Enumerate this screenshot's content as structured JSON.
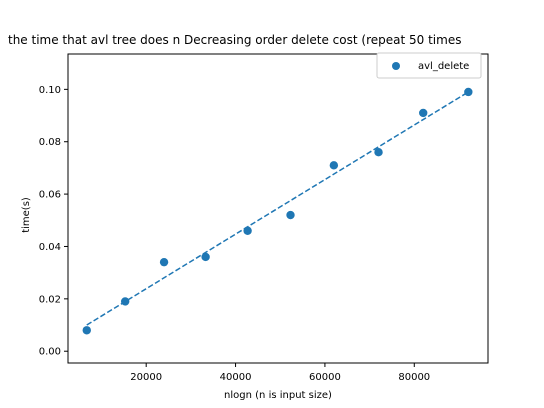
{
  "chart_data": {
    "type": "scatter",
    "title": "the time that avl tree does n Decreasing order delete cost (repeat 50 times",
    "xlabel": "nlogn (n is input size)",
    "ylabel": "time(s)",
    "xlim": [
      2500,
      96500
    ],
    "ylim": [
      -0.0045,
      0.1135
    ],
    "xticks": [
      20000,
      40000,
      60000,
      80000
    ],
    "xtick_labels": [
      "20000",
      "40000",
      "60000",
      "80000"
    ],
    "yticks": [
      0.0,
      0.02,
      0.04,
      0.06,
      0.08,
      0.1
    ],
    "ytick_labels": [
      "0.00",
      "0.02",
      "0.04",
      "0.06",
      "0.08",
      "0.10"
    ],
    "grid": false,
    "legend_position": "top-right",
    "colors": {
      "series": "#1f77b4"
    },
    "series": [
      {
        "name": "avl_delete",
        "x": [
          6700,
          15300,
          24000,
          33300,
          42700,
          52300,
          62000,
          72000,
          82000,
          92100
        ],
        "y": [
          0.008,
          0.019,
          0.034,
          0.036,
          0.046,
          0.052,
          0.071,
          0.076,
          0.091,
          0.099
        ]
      }
    ],
    "fit_line": {
      "style": "dashed",
      "x": [
        6700,
        92100
      ],
      "y": [
        0.01,
        0.099
      ]
    }
  }
}
